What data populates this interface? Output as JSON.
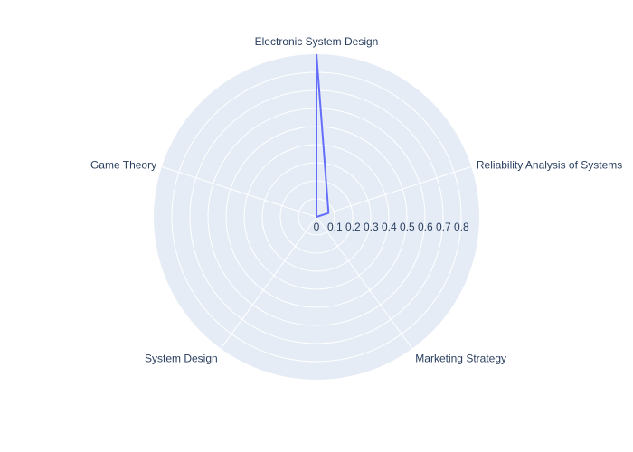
{
  "chart_data": {
    "type": "radar",
    "categories": [
      "Electronic System Design",
      "Reliability Analysis of Systems",
      "Marketing Strategy",
      "System Design",
      "Game Theory"
    ],
    "series": [
      {
        "values": [
          0.9,
          0.07,
          0.0,
          0.0,
          0.0
        ]
      }
    ],
    "radial_range": [
      0,
      0.9
    ],
    "radial_ticks": [
      0,
      0.1,
      0.2,
      0.3,
      0.4,
      0.5,
      0.6,
      0.7,
      0.8
    ],
    "tick_labels": [
      "0",
      "0.1",
      "0.2",
      "0.3",
      "0.4",
      "0.5",
      "0.6",
      "0.7",
      "0.8"
    ],
    "colors": {
      "background": "#e5ecf6",
      "grid": "#ffffff",
      "line": "#636efa",
      "text": "#2a3f5f"
    },
    "grid": true,
    "legend": "none"
  }
}
